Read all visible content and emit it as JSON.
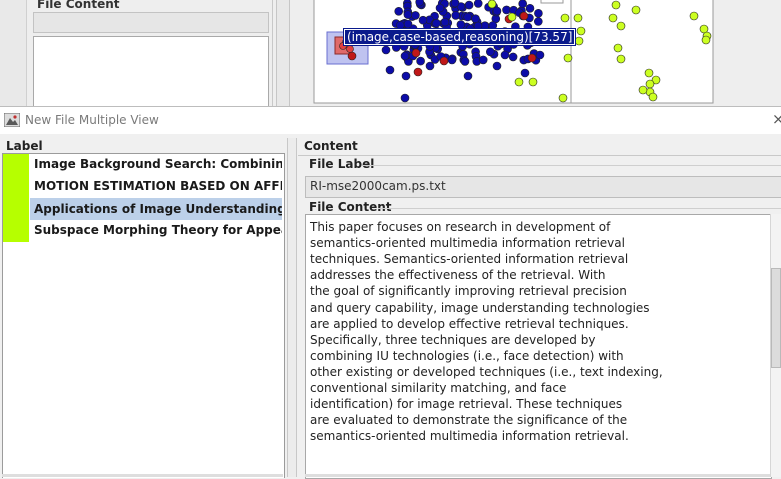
{
  "background_window": {
    "file_content_label": "File Content",
    "tooltip": "(image,case-based,reasoning)[73.57]"
  },
  "window": {
    "title": "New File Multiple View",
    "close_glyph": "×"
  },
  "label_panel": {
    "header": "Label",
    "items": [
      {
        "text": "Image Background Search: Combining Obje",
        "color": "#b6ff00",
        "selected": false
      },
      {
        "text": "MOTION ESTIMATION BASED ON AFFINEMOM",
        "color": "#b6ff00",
        "selected": false
      },
      {
        "text": "Applications of Image Understanding in Sem",
        "color": "#b6ff00",
        "selected": true
      },
      {
        "text": "Subspace Morphing Theory for Appearance",
        "color": "#b6ff00",
        "selected": false
      }
    ]
  },
  "content_panel": {
    "title": "Content",
    "file_label_title": "File Label",
    "file_label_value": "RI-mse2000cam.ps.txt",
    "file_content_title": "File Content",
    "file_content_text": "Abstract\nThis paper focuses on research in development of\nsemantics-oriented multimedia information retrieval\ntechniques. Semantics-oriented information retrieval\naddresses the effectiveness of the retrieval. With\nthe goal of significantly improving retrieval precision\nand query capability, image understanding technologies\nare applied to develop effective retrieval techniques.\nSpecifically, three techniques are developed by\ncombining IU technologies (i.e., face detection) with\nother existing or developed techniques (i.e., text indexing,\nconventional similarity matching, and face\nidentification) for image retrieval. These techniques\nare evaluated to demonstrate the significance of the\nsemantics-oriented multimedia information retrieval."
  },
  "colors": {
    "swatch": "#b6ff00",
    "selection": "#bcd0e9",
    "tooltip_bg": "#0a1a8c",
    "dot_blue": "#0c0ca8",
    "dot_red": "#c01818",
    "dot_yellow": "#ccff22"
  }
}
